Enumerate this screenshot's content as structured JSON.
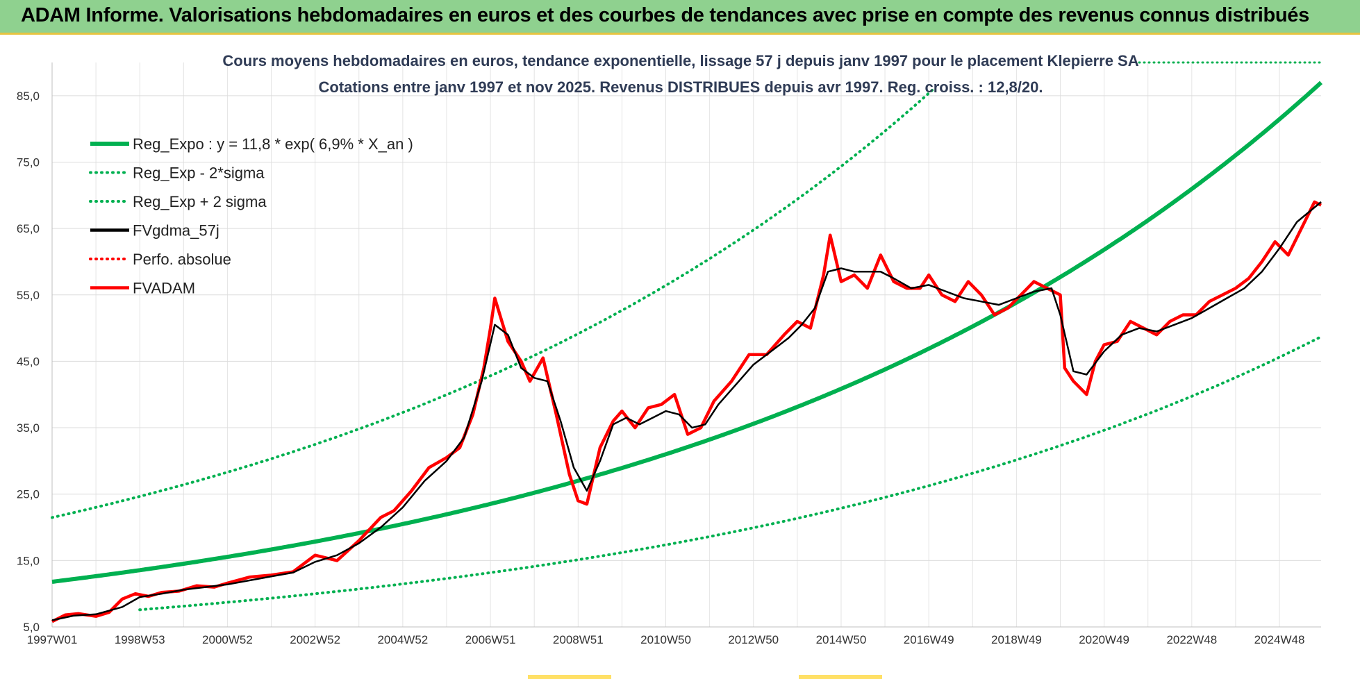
{
  "banner": {
    "title": "ADAM Informe. Valorisations hebdomadaires en euros et des courbes de tendances avec prise en compte des revenus connus distribués"
  },
  "colors": {
    "green": "#00b050",
    "red": "#ff0000",
    "black": "#000000",
    "banner": "#8fd18f"
  },
  "chart_data": {
    "type": "line",
    "title_lines": [
      "Cours moyens hebdomadaires en euros, tendance exponentielle, lissage 57 j depuis janv 1997 pour le placement Klepierre SA",
      "Cotations entre janv 1997 et nov 2025. Revenus DISTRIBUES depuis avr 1997. Reg. croiss. : 12,8/20."
    ],
    "x_range": [
      1997.0,
      2025.95
    ],
    "ylim": [
      5,
      90
    ],
    "y_ticks": [
      "5,0",
      "15,0",
      "25,0",
      "35,0",
      "45,0",
      "55,0",
      "65,0",
      "75,0",
      "85,0"
    ],
    "y_tick_values": [
      5,
      15,
      25,
      35,
      45,
      55,
      65,
      75,
      85
    ],
    "x_tick_labels": [
      "1997W01",
      "1998W53",
      "2000W52",
      "2002W52",
      "2004W52",
      "2006W51",
      "2008W51",
      "2010W50",
      "2012W50",
      "2014W50",
      "2016W49",
      "2018W49",
      "2020W49",
      "2022W48",
      "2024W48"
    ],
    "x_tick_values": [
      1997.0,
      1999.0,
      2001.0,
      2003.0,
      2005.0,
      2007.0,
      2009.0,
      2011.0,
      2013.0,
      2015.0,
      2017.0,
      2019.0,
      2021.0,
      2023.0,
      2025.0
    ],
    "legend": [
      {
        "label": "Reg_Expo : y = 11,8 * exp( 6,9% *  X_an )",
        "color": "#00b050",
        "style": "solid"
      },
      {
        "label": "Reg_Exp - 2*sigma",
        "color": "#00b050",
        "style": "dotted"
      },
      {
        "label": "Reg_Exp + 2 sigma",
        "color": "#00b050",
        "style": "dotted"
      },
      {
        "label": "FVgdma_57j",
        "color": "#000000",
        "style": "solid"
      },
      {
        "label": "Perfo. absolue",
        "color": "#ff0000",
        "style": "dotted"
      },
      {
        "label": "FVADAM",
        "color": "#ff0000",
        "style": "solid"
      }
    ],
    "regression": {
      "a": 11.8,
      "b": 0.069,
      "upper_factor": 1.82,
      "lower_factor": 0.56,
      "lower_start": 1999.0
    },
    "series": [
      {
        "name": "FVADAM",
        "x": [
          1997.0,
          1997.3,
          1997.6,
          1998.0,
          1998.3,
          1998.6,
          1998.9,
          1999.2,
          1999.5,
          1999.9,
          2000.3,
          2000.7,
          2001.0,
          2001.5,
          2002.0,
          2002.5,
          2003.0,
          2003.5,
          2004.0,
          2004.5,
          2004.8,
          2005.2,
          2005.6,
          2006.0,
          2006.3,
          2006.6,
          2006.85,
          2007.0,
          2007.1,
          2007.4,
          2007.7,
          2007.9,
          2008.2,
          2008.5,
          2008.8,
          2009.0,
          2009.2,
          2009.5,
          2009.8,
          2010.0,
          2010.3,
          2010.6,
          2010.9,
          2011.2,
          2011.5,
          2011.8,
          2012.1,
          2012.5,
          2012.9,
          2013.3,
          2013.7,
          2014.0,
          2014.3,
          2014.6,
          2014.75,
          2015.0,
          2015.3,
          2015.6,
          2015.9,
          2016.2,
          2016.5,
          2016.8,
          2017.0,
          2017.3,
          2017.6,
          2017.9,
          2018.2,
          2018.5,
          2018.8,
          2019.1,
          2019.4,
          2019.7,
          2020.0,
          2020.1,
          2020.3,
          2020.6,
          2020.8,
          2021.0,
          2021.3,
          2021.6,
          2021.9,
          2022.2,
          2022.5,
          2022.8,
          2023.1,
          2023.4,
          2023.7,
          2024.0,
          2024.3,
          2024.6,
          2024.9,
          2025.2,
          2025.5,
          2025.8,
          2025.95
        ],
        "y": [
          5.8,
          6.8,
          7.0,
          6.6,
          7.2,
          9.2,
          10.0,
          9.6,
          10.2,
          10.4,
          11.2,
          11.0,
          11.6,
          12.5,
          12.8,
          13.3,
          15.8,
          15.0,
          18.0,
          21.5,
          22.5,
          25.5,
          29.0,
          30.5,
          32.0,
          37.0,
          44.0,
          50.0,
          54.5,
          48.0,
          45.0,
          42.0,
          45.5,
          37.0,
          28.0,
          24.0,
          23.5,
          32.0,
          36.0,
          37.5,
          35.0,
          38.0,
          38.5,
          40.0,
          34.0,
          35.0,
          39.0,
          42.0,
          46.0,
          46.0,
          49.0,
          51.0,
          50.0,
          58.0,
          64.0,
          57.0,
          58.0,
          56.0,
          61.0,
          57.0,
          56.0,
          56.0,
          58.0,
          55.0,
          54.0,
          57.0,
          55.0,
          52.0,
          53.0,
          55.0,
          57.0,
          56.0,
          55.0,
          44.0,
          42.0,
          40.0,
          45.0,
          47.5,
          48.0,
          51.0,
          50.0,
          49.0,
          51.0,
          52.0,
          52.0,
          54.0,
          55.0,
          56.0,
          57.5,
          60.0,
          63.0,
          61.0,
          65.0,
          69.0,
          68.5
        ]
      },
      {
        "name": "FVgdma_57j",
        "x": [
          1997.0,
          1997.5,
          1998.0,
          1998.6,
          1999.0,
          1999.5,
          2000.0,
          2000.5,
          2001.0,
          2001.5,
          2002.0,
          2002.5,
          2003.0,
          2003.5,
          2004.0,
          2004.5,
          2005.0,
          2005.5,
          2006.0,
          2006.4,
          2006.8,
          2007.1,
          2007.4,
          2007.7,
          2008.0,
          2008.3,
          2008.6,
          2008.9,
          2009.2,
          2009.5,
          2009.8,
          2010.1,
          2010.4,
          2010.7,
          2011.0,
          2011.3,
          2011.6,
          2011.9,
          2012.2,
          2012.6,
          2013.0,
          2013.4,
          2013.8,
          2014.1,
          2014.4,
          2014.7,
          2015.0,
          2015.3,
          2015.6,
          2015.9,
          2016.2,
          2016.6,
          2017.0,
          2017.4,
          2017.8,
          2018.2,
          2018.6,
          2019.0,
          2019.4,
          2019.8,
          2020.0,
          2020.3,
          2020.6,
          2021.0,
          2021.4,
          2021.8,
          2022.2,
          2022.6,
          2023.0,
          2023.4,
          2023.8,
          2024.2,
          2024.6,
          2025.0,
          2025.4,
          2025.95
        ],
        "y": [
          6.0,
          6.7,
          6.9,
          8.0,
          9.5,
          10.0,
          10.6,
          11.0,
          11.4,
          12.0,
          12.6,
          13.2,
          14.8,
          15.8,
          17.6,
          20.0,
          23.0,
          27.0,
          30.0,
          33.5,
          42.0,
          50.5,
          49.0,
          44.0,
          42.5,
          42.0,
          36.0,
          29.0,
          25.5,
          30.0,
          35.5,
          36.5,
          35.5,
          36.5,
          37.5,
          37.0,
          35.0,
          35.5,
          38.5,
          41.5,
          44.5,
          46.5,
          48.5,
          50.5,
          53.0,
          58.5,
          59.0,
          58.5,
          58.5,
          58.5,
          57.5,
          56.0,
          56.5,
          55.5,
          54.5,
          54.0,
          53.5,
          54.5,
          55.5,
          56.0,
          52.0,
          43.5,
          43.0,
          46.5,
          49.0,
          50.0,
          49.5,
          50.5,
          51.5,
          53.0,
          54.5,
          56.0,
          58.5,
          62.0,
          66.0,
          69.0
        ]
      }
    ]
  }
}
